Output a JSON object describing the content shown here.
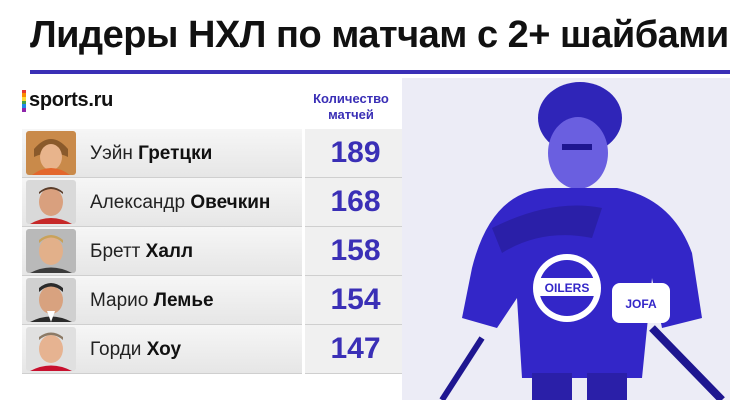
{
  "title": "Лидеры НХЛ по матчам с 2+ шайбами",
  "brand": {
    "name": "sports.ru"
  },
  "table": {
    "column_header_line1": "Количество",
    "column_header_line2": "матчей",
    "rows": [
      {
        "first": "Уэйн",
        "last": "Гретцки",
        "value": "189"
      },
      {
        "first": "Александр",
        "last": "Овечкин",
        "value": "168"
      },
      {
        "first": "Бретт",
        "last": "Халл",
        "value": "158"
      },
      {
        "first": "Марио",
        "last": "Лемье",
        "value": "154"
      },
      {
        "first": "Горди",
        "last": "Хоу",
        "value": "147"
      }
    ]
  },
  "photo_jersey_text": "OILERS",
  "photo_glove_text": "JOFA",
  "colors": {
    "accent": "#3a2fb6",
    "photo_tint": "#3b2fc9"
  }
}
